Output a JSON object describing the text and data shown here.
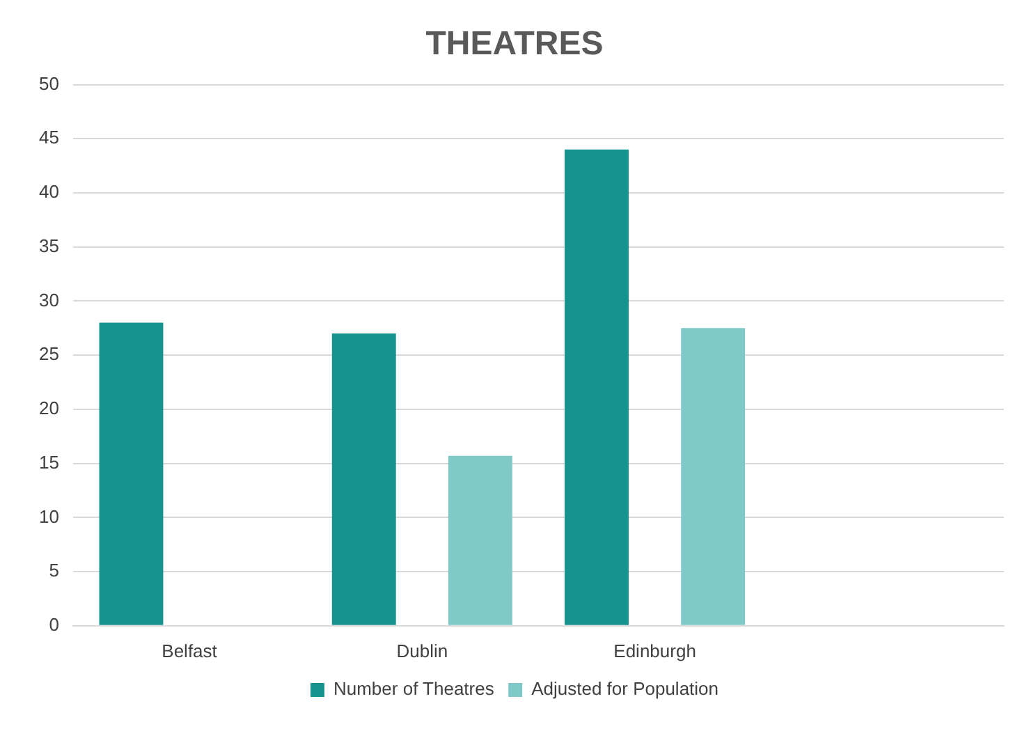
{
  "chart_data": {
    "type": "bar",
    "title": "THEATRES",
    "categories": [
      "Belfast",
      "Dublin",
      "Edinburgh",
      null
    ],
    "series": [
      {
        "name": "Number of Theatres",
        "color": "#17938f",
        "values": [
          28,
          27,
          44,
          null
        ]
      },
      {
        "name": "Adjusted for Population",
        "color": "#7fc9c8",
        "values": [
          null,
          15.7,
          27.5,
          null
        ]
      }
    ],
    "ylim": [
      0,
      50
    ],
    "yticks": [
      0,
      5,
      10,
      15,
      20,
      25,
      30,
      35,
      40,
      45,
      50
    ],
    "grid": "y",
    "legend": "bottom"
  }
}
